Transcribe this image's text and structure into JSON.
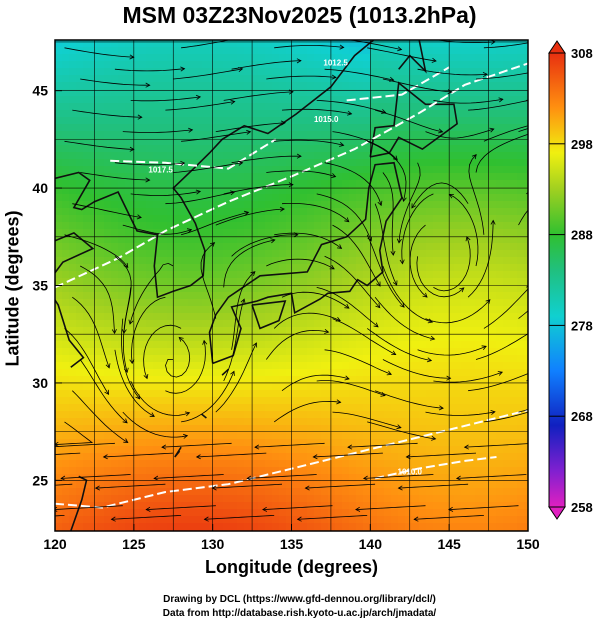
{
  "title": "MSM 03Z23Nov2025 (1013.2hPa)",
  "chart_data": {
    "type": "heatmap",
    "title": "MSM 03Z23Nov2025 (1013.2hPa)",
    "xlabel": "Longitude (degrees)",
    "ylabel": "Latitude  (degrees)",
    "xlim": [
      120,
      150
    ],
    "ylim": [
      22.4,
      47.6
    ],
    "x_ticks": [
      "120",
      "125",
      "130",
      "135",
      "140",
      "145",
      "150"
    ],
    "y_ticks": [
      "25",
      "30",
      "35",
      "40",
      "45"
    ],
    "grid": true,
    "colorbar": {
      "min": 258,
      "max": 308,
      "ticks": [
        "258",
        "268",
        "278",
        "288",
        "298",
        "308"
      ]
    },
    "contour_labels": [
      "1012.5",
      "1015.0",
      "1017.5",
      "1010.0"
    ],
    "vortices": [
      {
        "lon": 144.5,
        "lat": 36.0
      },
      {
        "lon": 127.5,
        "lat": 31.0
      }
    ]
  },
  "credits": {
    "line1": "Drawing by DCL (https://www.gfd-dennou.org/library/dcl/)",
    "line2": "Data from http://database.rish.kyoto-u.ac.jp/arch/jmadata/"
  }
}
